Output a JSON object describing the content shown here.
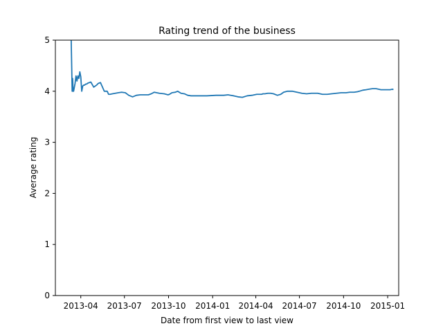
{
  "chart_data": {
    "type": "line",
    "title": "Rating trend of the business",
    "xlabel": "Date from first view to last view",
    "ylabel": "Average rating",
    "xlim": [
      "2013-02-07",
      "2015-01-24"
    ],
    "ylim": [
      0,
      5
    ],
    "x_ticks": [
      {
        "date": "2013-04-01",
        "label": "2013-04"
      },
      {
        "date": "2013-07-01",
        "label": "2013-07"
      },
      {
        "date": "2013-10-01",
        "label": "2013-10"
      },
      {
        "date": "2014-01-01",
        "label": "2014-01"
      },
      {
        "date": "2014-04-01",
        "label": "2014-04"
      },
      {
        "date": "2014-07-01",
        "label": "2014-07"
      },
      {
        "date": "2014-10-01",
        "label": "2014-10"
      },
      {
        "date": "2015-01-01",
        "label": "2015-01"
      }
    ],
    "y_ticks": [
      0,
      1,
      2,
      3,
      4,
      5
    ],
    "grid": false,
    "colors": {
      "line": "#1f77b4"
    },
    "series": [
      {
        "x": [
          "2013-03-12",
          "2013-03-14",
          "2013-03-15",
          "2013-03-16",
          "2013-03-17",
          "2013-03-18",
          "2013-03-20",
          "2013-03-22",
          "2013-03-24",
          "2013-03-26",
          "2013-03-28",
          "2013-03-30",
          "2013-04-01",
          "2013-04-03",
          "2013-04-05",
          "2013-04-07",
          "2013-04-09",
          "2013-04-11",
          "2013-04-13",
          "2013-04-16",
          "2013-04-22",
          "2013-04-28",
          "2013-05-04",
          "2013-05-07",
          "2013-05-12",
          "2013-05-20",
          "2013-05-26",
          "2013-05-29",
          "2013-06-01",
          "2013-06-06",
          "2013-06-12",
          "2013-06-18",
          "2013-06-25",
          "2013-07-03",
          "2013-07-10",
          "2013-07-18",
          "2013-07-26",
          "2013-08-03",
          "2013-08-20",
          "2013-08-26",
          "2013-09-01",
          "2013-09-12",
          "2013-09-22",
          "2013-09-30",
          "2013-10-03",
          "2013-10-08",
          "2013-10-15",
          "2013-10-20",
          "2013-10-27",
          "2013-11-03",
          "2013-11-10",
          "2013-11-17",
          "2013-12-01",
          "2013-12-20",
          "2014-01-08",
          "2014-01-14",
          "2014-01-24",
          "2014-02-02",
          "2014-02-08",
          "2014-02-14",
          "2014-02-23",
          "2014-03-04",
          "2014-03-14",
          "2014-03-24",
          "2014-04-03",
          "2014-04-13",
          "2014-04-16",
          "2014-04-20",
          "2014-04-26",
          "2014-05-02",
          "2014-05-08",
          "2014-05-16",
          "2014-05-23",
          "2014-05-29",
          "2014-06-06",
          "2014-06-16",
          "2014-06-26",
          "2014-07-06",
          "2014-07-16",
          "2014-07-26",
          "2014-08-08",
          "2014-08-18",
          "2014-08-28",
          "2014-09-06",
          "2014-09-16",
          "2014-09-26",
          "2014-10-06",
          "2014-10-14",
          "2014-10-23",
          "2014-10-30",
          "2014-11-03",
          "2014-11-10",
          "2014-11-17",
          "2014-11-23",
          "2014-11-30",
          "2014-12-08",
          "2014-12-18",
          "2014-12-28",
          "2015-01-06",
          "2015-01-11",
          "2015-01-13"
        ],
        "y": [
          5.0,
          4.0,
          4.25,
          4.0,
          4.0,
          4.05,
          4.15,
          4.3,
          4.2,
          4.3,
          4.25,
          4.38,
          4.28,
          4.0,
          4.1,
          4.12,
          4.12,
          4.14,
          4.14,
          4.16,
          4.18,
          4.08,
          4.12,
          4.15,
          4.17,
          4.0,
          4.0,
          3.94,
          3.94,
          3.95,
          3.96,
          3.97,
          3.98,
          3.97,
          3.92,
          3.89,
          3.92,
          3.93,
          3.93,
          3.95,
          3.98,
          3.96,
          3.95,
          3.93,
          3.94,
          3.97,
          3.98,
          4.0,
          3.96,
          3.95,
          3.92,
          3.91,
          3.91,
          3.91,
          3.92,
          3.92,
          3.92,
          3.93,
          3.92,
          3.91,
          3.89,
          3.88,
          3.91,
          3.92,
          3.94,
          3.94,
          3.95,
          3.95,
          3.96,
          3.96,
          3.95,
          3.92,
          3.94,
          3.98,
          4.0,
          4.0,
          3.98,
          3.96,
          3.95,
          3.96,
          3.96,
          3.94,
          3.94,
          3.95,
          3.96,
          3.97,
          3.97,
          3.98,
          3.98,
          3.99,
          4.0,
          4.02,
          4.03,
          4.04,
          4.05,
          4.05,
          4.03,
          4.03,
          4.03,
          4.04,
          4.03
        ]
      }
    ]
  }
}
